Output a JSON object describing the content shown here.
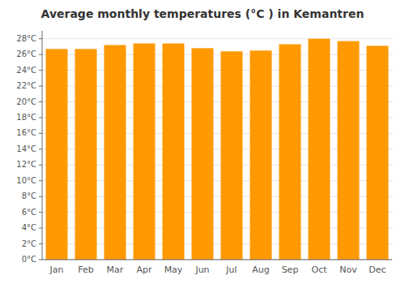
{
  "chart_data": {
    "type": "bar",
    "title": "Average monthly temperatures (°C ) in Kemantren",
    "categories": [
      "Jan",
      "Feb",
      "Mar",
      "Apr",
      "May",
      "Jun",
      "Jul",
      "Aug",
      "Sep",
      "Oct",
      "Nov",
      "Dec"
    ],
    "values": [
      26.7,
      26.7,
      27.2,
      27.4,
      27.4,
      26.8,
      26.4,
      26.5,
      27.3,
      28.0,
      27.7,
      27.1
    ],
    "color": "#FF9900",
    "ylim": [
      0,
      29
    ],
    "yticks": [
      {
        "value": 0,
        "label": "0°C"
      },
      {
        "value": 2,
        "label": "2°C"
      },
      {
        "value": 4,
        "label": "4°C"
      },
      {
        "value": 6,
        "label": "6°C"
      },
      {
        "value": 8,
        "label": "8°C"
      },
      {
        "value": 10,
        "label": "10°C"
      },
      {
        "value": 12,
        "label": "12°C"
      },
      {
        "value": 14,
        "label": "14°C"
      },
      {
        "value": 16,
        "label": "16°C"
      },
      {
        "value": 18,
        "label": "18°C"
      },
      {
        "value": 20,
        "label": "20°C"
      },
      {
        "value": 22,
        "label": "22°C"
      },
      {
        "value": 24,
        "label": "24°C"
      },
      {
        "value": 26,
        "label": "26°C"
      },
      {
        "value": 28,
        "label": "28°C"
      }
    ],
    "grid": true
  }
}
